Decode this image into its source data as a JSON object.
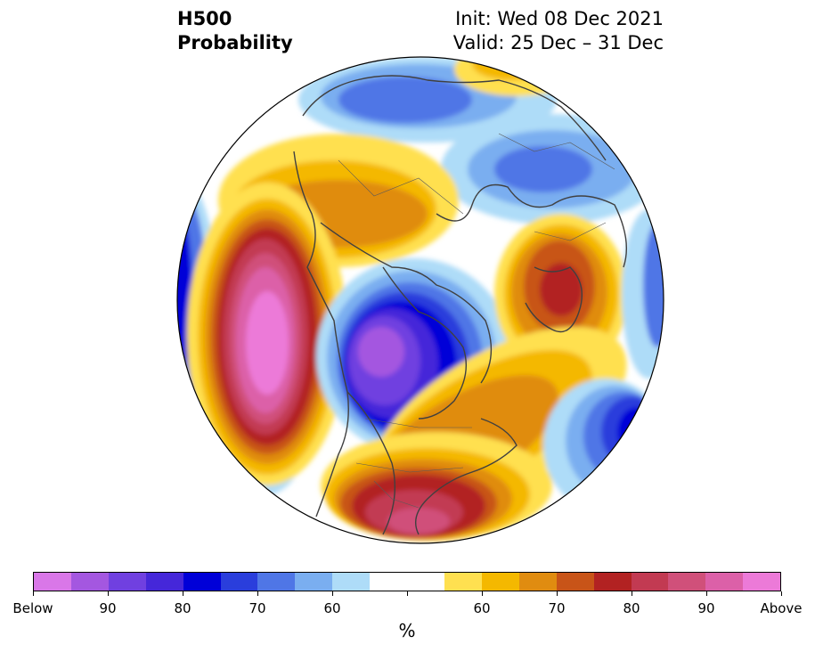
{
  "header": {
    "title_line1": "H500",
    "title_line2": "Probability",
    "init_text": "Init: Wed 08 Dec 2021",
    "valid_text": "Valid: 25 Dec – 31 Dec"
  },
  "colorbar": {
    "colors": [
      "#d977e8",
      "#a457e0",
      "#7040e0",
      "#4527d9",
      "#0000d8",
      "#2a3edc",
      "#4f76e6",
      "#7aaef0",
      "#aedcf8",
      "#ffffff",
      "#ffffff",
      "#ffe050",
      "#f4b800",
      "#e08c10",
      "#c85418",
      "#b22222",
      "#c23a52",
      "#d0507a",
      "#dc60a8",
      "#ec7ad8"
    ],
    "tick_labels": [
      "Below",
      "90",
      "80",
      "70",
      "60",
      "60",
      "70",
      "80",
      "90",
      "Above"
    ],
    "unit": "%"
  },
  "map": {
    "projection": "north-polar-stereographic",
    "anomaly_colors": {
      "strong_below": "#0000d8",
      "below": "#4f76e6",
      "weak_below": "#aedcf8",
      "neutral": "#ffffff",
      "weak_above": "#ffe050",
      "above": "#e08c10",
      "strong_above": "#b22222",
      "extreme_above": "#ec7ad8"
    }
  }
}
